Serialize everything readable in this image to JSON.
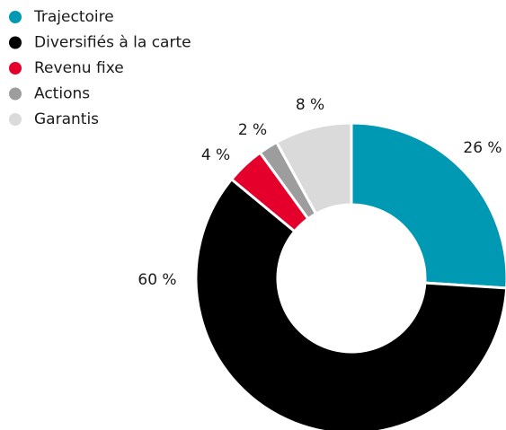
{
  "chart_data": {
    "type": "pie",
    "categories": [
      "Trajectoire",
      "Diversifiés à la carte",
      "Revenu fixe",
      "Actions",
      "Garantis"
    ],
    "values": [
      26,
      60,
      4,
      2,
      8
    ],
    "value_labels": [
      "26 %",
      "60 %",
      "4 %",
      "2 %",
      "8 %"
    ],
    "colors": [
      "#0099b3",
      "#000000",
      "#e4002b",
      "#9d9d9d",
      "#dadada"
    ],
    "donut": true
  }
}
